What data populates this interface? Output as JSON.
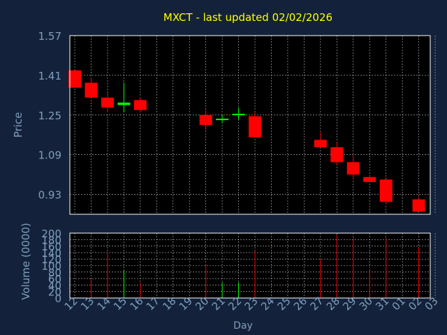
{
  "colors": {
    "background": "#13223a",
    "plot_background": "#000000",
    "title": "#ffff00",
    "axis_text": "#7f9fbf",
    "frame": "#ffffff",
    "grid": "#c0c0c0",
    "up": "#00ff00",
    "down": "#ff0000"
  },
  "chart_data": [
    {
      "type": "candlestick",
      "title": "MXCT - last updated 02/02/2026",
      "ylabel": "Price",
      "ylim": [
        0.85,
        1.57
      ],
      "y_ticks": [
        "1.57",
        "1.41",
        "1.25",
        "1.09",
        "0.93"
      ],
      "y_tick_values": [
        1.57,
        1.41,
        1.25,
        1.09,
        0.93
      ],
      "grid": true,
      "x_index_range": [
        -0.3,
        21.7
      ],
      "candles": [
        {
          "i": 0,
          "open": 1.43,
          "high": 1.43,
          "low": 1.36,
          "close": 1.36
        },
        {
          "i": 1,
          "open": 1.38,
          "high": 1.4,
          "low": 1.32,
          "close": 1.32
        },
        {
          "i": 2,
          "open": 1.32,
          "high": 1.34,
          "low": 1.26,
          "close": 1.28
        },
        {
          "i": 3,
          "open": 1.29,
          "high": 1.38,
          "low": 1.26,
          "close": 1.3
        },
        {
          "i": 4,
          "open": 1.31,
          "high": 1.32,
          "low": 1.26,
          "close": 1.27
        },
        {
          "i": 8,
          "open": 1.25,
          "high": 1.27,
          "low": 1.19,
          "close": 1.21
        },
        {
          "i": 9,
          "open": 1.23,
          "high": 1.25,
          "low": 1.22,
          "close": 1.235
        },
        {
          "i": 10,
          "open": 1.25,
          "high": 1.28,
          "low": 1.23,
          "close": 1.255
        },
        {
          "i": 11,
          "open": 1.245,
          "high": 1.26,
          "low": 1.16,
          "close": 1.16
        },
        {
          "i": 15,
          "open": 1.15,
          "high": 1.18,
          "low": 1.12,
          "close": 1.12
        },
        {
          "i": 16,
          "open": 1.12,
          "high": 1.14,
          "low": 1.05,
          "close": 1.06
        },
        {
          "i": 17,
          "open": 1.06,
          "high": 1.09,
          "low": 0.99,
          "close": 1.01
        },
        {
          "i": 18,
          "open": 1.0,
          "high": 1.0,
          "low": 0.98,
          "close": 0.98
        },
        {
          "i": 19,
          "open": 0.99,
          "high": 0.99,
          "low": 0.89,
          "close": 0.9
        },
        {
          "i": 21,
          "open": 0.91,
          "high": 0.92,
          "low": 0.86,
          "close": 0.86
        }
      ]
    },
    {
      "type": "bar",
      "ylabel": "Volume (0000)",
      "xlabel": "Day",
      "ylim": [
        0,
        200
      ],
      "y_ticks": [
        "200",
        "180",
        "160",
        "140",
        "120",
        "100",
        "80",
        "60",
        "40",
        "20",
        "0"
      ],
      "y_tick_values": [
        200,
        180,
        160,
        140,
        120,
        100,
        80,
        60,
        40,
        20,
        0
      ],
      "categories": [
        "12",
        "13",
        "14",
        "15",
        "16",
        "17",
        "18",
        "19",
        "20",
        "21",
        "22",
        "23",
        "24",
        "25",
        "26",
        "27",
        "28",
        "29",
        "30",
        "31",
        "01",
        "02",
        "03"
      ],
      "grid": true,
      "bars": [
        {
          "i": 1,
          "value": 60,
          "dir": "down"
        },
        {
          "i": 2,
          "value": 140,
          "dir": "down"
        },
        {
          "i": 3,
          "value": 85,
          "dir": "up"
        },
        {
          "i": 4,
          "value": 48,
          "dir": "down"
        },
        {
          "i": 8,
          "value": 105,
          "dir": "down"
        },
        {
          "i": 9,
          "value": 48,
          "dir": "up"
        },
        {
          "i": 10,
          "value": 48,
          "dir": "up"
        },
        {
          "i": 11,
          "value": 145,
          "dir": "down"
        },
        {
          "i": 15,
          "value": 120,
          "dir": "down"
        },
        {
          "i": 16,
          "value": 195,
          "dir": "down"
        },
        {
          "i": 17,
          "value": 185,
          "dir": "down"
        },
        {
          "i": 18,
          "value": 85,
          "dir": "down"
        },
        {
          "i": 19,
          "value": 185,
          "dir": "down"
        },
        {
          "i": 21,
          "value": 155,
          "dir": "down"
        }
      ]
    }
  ]
}
